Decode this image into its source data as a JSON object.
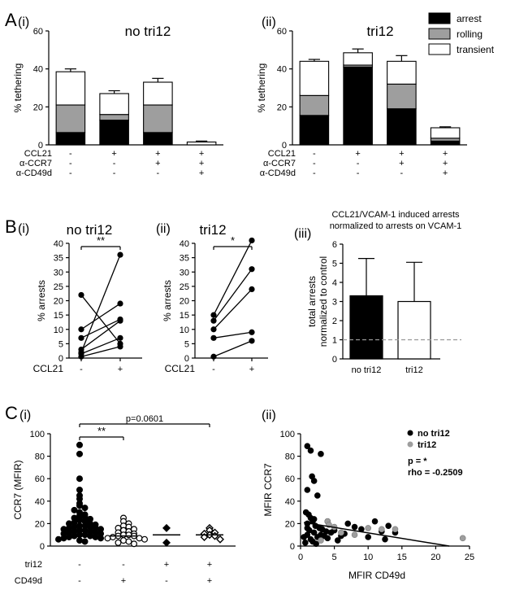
{
  "panels": {
    "A": "A",
    "B": "B",
    "C": "C",
    "Ai": "(i)",
    "Aii": "(ii)",
    "Bi": "(i)",
    "Bii": "(ii)",
    "Biii": "(iii)",
    "Ci": "(i)",
    "Cii": "(ii)"
  },
  "chart_data": [
    {
      "id": "A_i",
      "type": "bar",
      "stacked": true,
      "title": "no tri12",
      "ylabel": "% tethering",
      "ylim": [
        0,
        60
      ],
      "yticks": [
        0,
        20,
        40,
        60
      ],
      "row_labels": [
        "CCL21",
        "α-CCR7",
        "α-CD49d"
      ],
      "conditions": [
        [
          "-",
          "-",
          "-"
        ],
        [
          "+",
          "-",
          "-"
        ],
        [
          "+",
          "+",
          "-"
        ],
        [
          "+",
          "+",
          "+"
        ]
      ],
      "series": [
        {
          "name": "arrest",
          "color": "#000000",
          "values": [
            6.5,
            13,
            6.5,
            0
          ],
          "errors": [
            1,
            1.5,
            2,
            0
          ]
        },
        {
          "name": "rolling",
          "color": "#9e9e9e",
          "values": [
            14.5,
            3,
            14.5,
            0
          ],
          "errors": [
            3,
            1,
            0.5,
            0
          ]
        },
        {
          "name": "transient",
          "color": "#ffffff",
          "values": [
            17.5,
            11,
            12,
            1.5
          ],
          "errors": [
            1.5,
            1.5,
            2,
            0.5
          ]
        }
      ]
    },
    {
      "id": "A_ii",
      "type": "bar",
      "stacked": true,
      "title": "tri12",
      "ylabel": "% tethering",
      "ylim": [
        0,
        60
      ],
      "yticks": [
        0,
        20,
        40,
        60
      ],
      "row_labels": [
        "CCL21",
        "α-CCR7",
        "α-CD49d"
      ],
      "conditions": [
        [
          "-",
          "-",
          "-"
        ],
        [
          "+",
          "-",
          "-"
        ],
        [
          "+",
          "+",
          "-"
        ],
        [
          "+",
          "+",
          "+"
        ]
      ],
      "legend": {
        "position": "top-right",
        "entries": [
          "arrest",
          "rolling",
          "transient"
        ]
      },
      "series": [
        {
          "name": "arrest",
          "color": "#000000",
          "values": [
            15.5,
            41,
            19,
            2
          ],
          "errors": [
            0.5,
            1.5,
            3,
            0.5
          ]
        },
        {
          "name": "rolling",
          "color": "#9e9e9e",
          "values": [
            10.5,
            1,
            13,
            1.5
          ],
          "errors": [
            0.5,
            0.5,
            3,
            0.3
          ]
        },
        {
          "name": "transient",
          "color": "#ffffff",
          "values": [
            18,
            6.5,
            12,
            5.5
          ],
          "errors": [
            1,
            2,
            3,
            0.5
          ]
        }
      ]
    },
    {
      "id": "B_i",
      "type": "line",
      "paired": true,
      "title": "no tri12",
      "ylabel": "% arrests",
      "xlabel": "CCL21",
      "categories": [
        "-",
        "+"
      ],
      "ylim": [
        0,
        40
      ],
      "yticks": [
        0,
        5,
        10,
        15,
        20,
        25,
        30,
        35,
        40
      ],
      "significance": "**",
      "pairs": [
        [
          22,
          5
        ],
        [
          10,
          19
        ],
        [
          7,
          13.5
        ],
        [
          3,
          13
        ],
        [
          1.5,
          7
        ],
        [
          0.5,
          4
        ],
        [
          2,
          36
        ]
      ]
    },
    {
      "id": "B_ii",
      "type": "line",
      "paired": true,
      "title": "tri12",
      "ylabel": "% arrests",
      "xlabel": "CCL21",
      "categories": [
        "-",
        "+"
      ],
      "ylim": [
        0,
        40
      ],
      "yticks": [
        0,
        5,
        10,
        15,
        20,
        25,
        30,
        35,
        40
      ],
      "significance": "*",
      "pairs": [
        [
          15,
          41
        ],
        [
          13,
          31
        ],
        [
          10,
          24
        ],
        [
          7,
          9
        ],
        [
          0.5,
          6
        ]
      ]
    },
    {
      "id": "B_iii",
      "type": "bar",
      "title": "CCL21/VCAM-1 induced arrests normalized to arrests on VCAM-1",
      "title_lines": [
        "CCL21/VCAM-1 induced arrests",
        "normalized to arrests on VCAM-1"
      ],
      "ylabel_lines": [
        "total arrests",
        "normalized to control"
      ],
      "categories": [
        "no tri12",
        "tri12"
      ],
      "values": [
        3.3,
        3.0
      ],
      "errors": [
        1.95,
        2.05
      ],
      "colors": [
        "#000000",
        "#ffffff"
      ],
      "ylim": [
        0,
        6
      ],
      "yticks": [
        0,
        1,
        2,
        3,
        4,
        5,
        6
      ],
      "reference_line": 1
    },
    {
      "id": "C_i",
      "type": "scatter",
      "ylabel": "CCR7 (MFIR)",
      "ylim": [
        0,
        100
      ],
      "yticks": [
        0,
        20,
        40,
        60,
        80,
        100
      ],
      "row_labels": [
        "tri12",
        "CD49d"
      ],
      "conditions": [
        [
          "-",
          "-"
        ],
        [
          "-",
          "+"
        ],
        [
          "+",
          "-"
        ],
        [
          "+",
          "+"
        ]
      ],
      "medians": [
        14,
        9,
        10,
        10
      ],
      "comparisons": [
        {
          "from": 0,
          "to": 1,
          "label": "**"
        },
        {
          "from": 0,
          "to": 3,
          "label": "p=0.0601"
        }
      ],
      "groups": [
        {
          "marker": "filled-circle",
          "values": [
            90,
            82,
            60,
            50,
            45,
            42,
            38,
            36,
            34,
            32,
            30,
            28,
            27,
            26,
            25,
            24,
            23,
            22,
            21,
            20,
            20,
            19,
            18,
            18,
            17,
            17,
            16,
            16,
            15,
            15,
            14,
            14,
            13,
            13,
            12,
            12,
            11,
            11,
            10,
            10,
            9,
            9,
            8,
            8,
            7,
            7,
            6,
            5,
            4
          ]
        },
        {
          "marker": "open-circle",
          "values": [
            25,
            22,
            20,
            18,
            17,
            16,
            15,
            14,
            13,
            12,
            11,
            10,
            10,
            9,
            9,
            8,
            7,
            7,
            6,
            5,
            4,
            3,
            2
          ]
        },
        {
          "marker": "filled-diamond",
          "values": [
            16,
            3
          ]
        },
        {
          "marker": "open-diamond",
          "values": [
            16,
            14,
            12,
            11,
            10,
            9,
            8,
            6
          ]
        }
      ]
    },
    {
      "id": "C_ii",
      "type": "scatter",
      "xlabel": "MFIR CD49d",
      "ylabel": "MFIR CCR7",
      "xlim": [
        0,
        25
      ],
      "ylim": [
        0,
        100
      ],
      "xticks": [
        0,
        5,
        10,
        15,
        20,
        25
      ],
      "yticks": [
        0,
        20,
        40,
        60,
        80,
        100
      ],
      "legend": {
        "position": "top-right",
        "entries": [
          "no tri12",
          "tri12"
        ]
      },
      "stats_lines": [
        "p = *",
        "rho = -0.2509"
      ],
      "fit_line": {
        "x": [
          0.5,
          22
        ],
        "y": [
          21,
          0
        ]
      },
      "series": [
        {
          "name": "no tri12",
          "color": "#000000",
          "points": [
            [
              1,
              89
            ],
            [
              1.5,
              85
            ],
            [
              3,
              82
            ],
            [
              1.7,
              62
            ],
            [
              2,
              58
            ],
            [
              1,
              50
            ],
            [
              2.5,
              45
            ],
            [
              0.8,
              30
            ],
            [
              1.2,
              28
            ],
            [
              1.5,
              25
            ],
            [
              1.8,
              22
            ],
            [
              1,
              20
            ],
            [
              2.2,
              18
            ],
            [
              2.8,
              16
            ],
            [
              3.2,
              15
            ],
            [
              1.3,
              14
            ],
            [
              2,
              12
            ],
            [
              1,
              10
            ],
            [
              3.5,
              9
            ],
            [
              2.5,
              8
            ],
            [
              1.5,
              6
            ],
            [
              4,
              22
            ],
            [
              4.5,
              12
            ],
            [
              5,
              14
            ],
            [
              6,
              9
            ],
            [
              7,
              20
            ],
            [
              8,
              17
            ],
            [
              9,
              15
            ],
            [
              10,
              8
            ],
            [
              11,
              22
            ],
            [
              12,
              13
            ],
            [
              13,
              18
            ],
            [
              14,
              12
            ],
            [
              3,
              10
            ],
            [
              4,
              7
            ],
            [
              1.8,
              4
            ],
            [
              0.7,
              3
            ],
            [
              2.3,
              2
            ],
            [
              3.8,
              13
            ],
            [
              5.5,
              5
            ],
            [
              6.5,
              11
            ],
            [
              12.5,
              6
            ],
            [
              1,
              16
            ],
            [
              2,
              24
            ],
            [
              0.5,
              8
            ]
          ]
        },
        {
          "name": "tri12",
          "color": "#9e9e9e",
          "points": [
            [
              4,
              22
            ],
            [
              4.2,
              19
            ],
            [
              6,
              12
            ],
            [
              10,
              16
            ],
            [
              12,
              15
            ],
            [
              14,
              15
            ],
            [
              5,
              17
            ],
            [
              3,
              5
            ],
            [
              24,
              7
            ],
            [
              8,
              10
            ]
          ]
        }
      ]
    }
  ]
}
